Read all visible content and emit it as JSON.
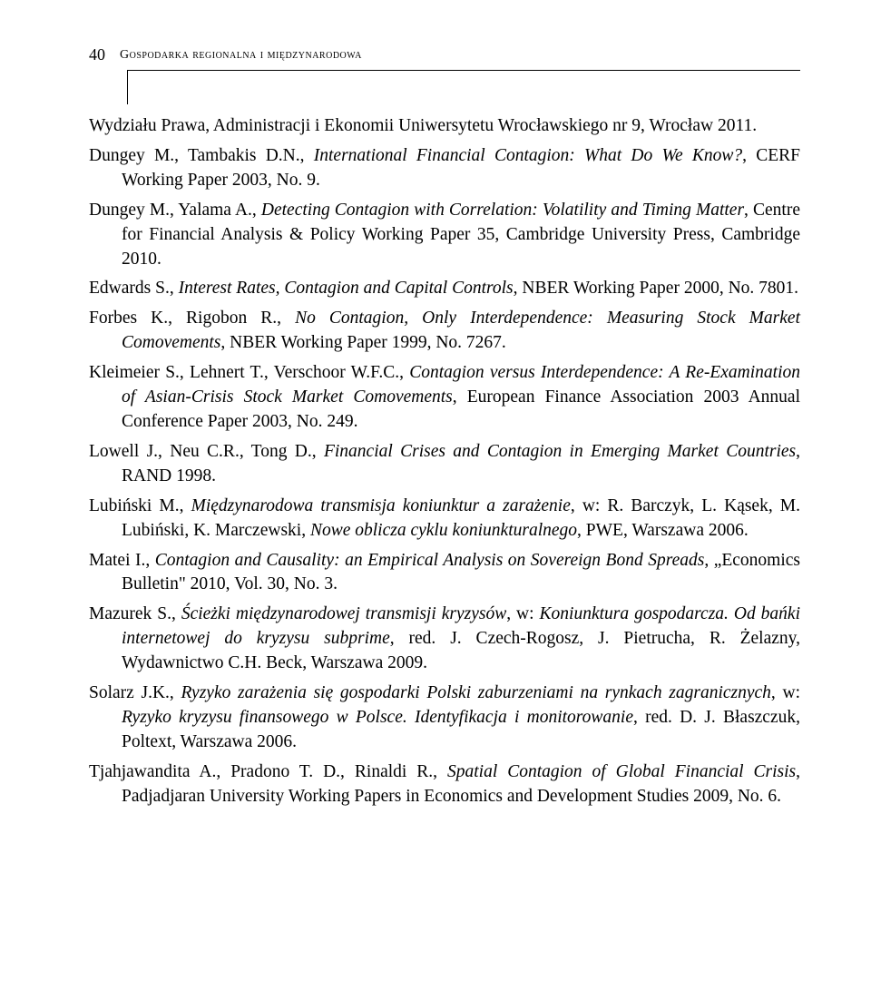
{
  "page_number": "40",
  "running_head": "Gospodarka regionalna i międzynarodowa",
  "refs": [
    "Wydziału Prawa, Administracji i Ekonomii Uniwersytetu Wrocławskiego nr 9, Wrocław 2011.",
    "Dungey M., Tambakis D.N., <em>International Financial Contagion: What Do We Know?</em>, CERF Working Paper 2003, No. 9.",
    "Dungey M., Yalama A., <em>Detecting Contagion with Correlation: Volatility and Timing Matter</em>, Centre for Financial Analysis & Policy Working Paper 35, Cambridge University Press, Cambridge 2010.",
    "Edwards S., <em>Interest Rates, Contagion and Capital Controls</em>, NBER Working Paper 2000, No. 7801.",
    "Forbes K., Rigobon R., <em>No Contagion, Only Interdependence: Measuring Stock Market Comovements</em>, NBER Working Paper 1999, No. 7267.",
    "Kleimeier S., Lehnert T., Verschoor W.F.C., <em>Contagion versus Interdependence: A Re-Examination of Asian-Crisis Stock Market Comovements</em>, European Finance Association 2003 Annual Conference Paper 2003, No. 249.",
    "Lowell J., Neu C.R., Tong D., <em>Financial Crises and Contagion in Emerging Market Countries</em>, RAND 1998.",
    "Lubiński M., <em>Międzynarodowa transmisja koniunktur a zarażenie</em>, w: R. Barczyk, L. Kąsek, M. Lubiński, K. Marczewski, <em>Nowe oblicza cyklu koniunkturalnego</em>, PWE, Warszawa 2006.",
    "Matei I., <em>Contagion and Causality: an Empirical Analysis on Sovereign Bond Spreads</em>, „Economics Bulletin\" 2010, Vol. 30, No. 3.",
    "Mazurek S., <em>Ścieżki międzynarodowej transmisji kryzysów</em>, w: <em>Koniunktura gospodarcza. Od bańki internetowej do kryzysu subprime</em>, red. J. Czech-Rogosz, J. Pietrucha, R. Żelazny, Wydawnictwo C.H. Beck, Warszawa 2009.",
    "Solarz J.K., <em>Ryzyko zarażenia się gospodarki Polski zaburzeniami na rynkach zagranicznych</em>, w: <em>Ryzyko kryzysu finansowego w Polsce. Identyfikacja i monitorowanie</em>, red. D. J. Błaszczuk, Poltext, Warszawa 2006.",
    "Tjahjawandita A., Pradono T. D., Rinaldi R., <em>Spatial Contagion of Global Financial Crisis</em>, Padjadjaran University Working Papers in Economics and Development Studies 2009, No. 6."
  ]
}
